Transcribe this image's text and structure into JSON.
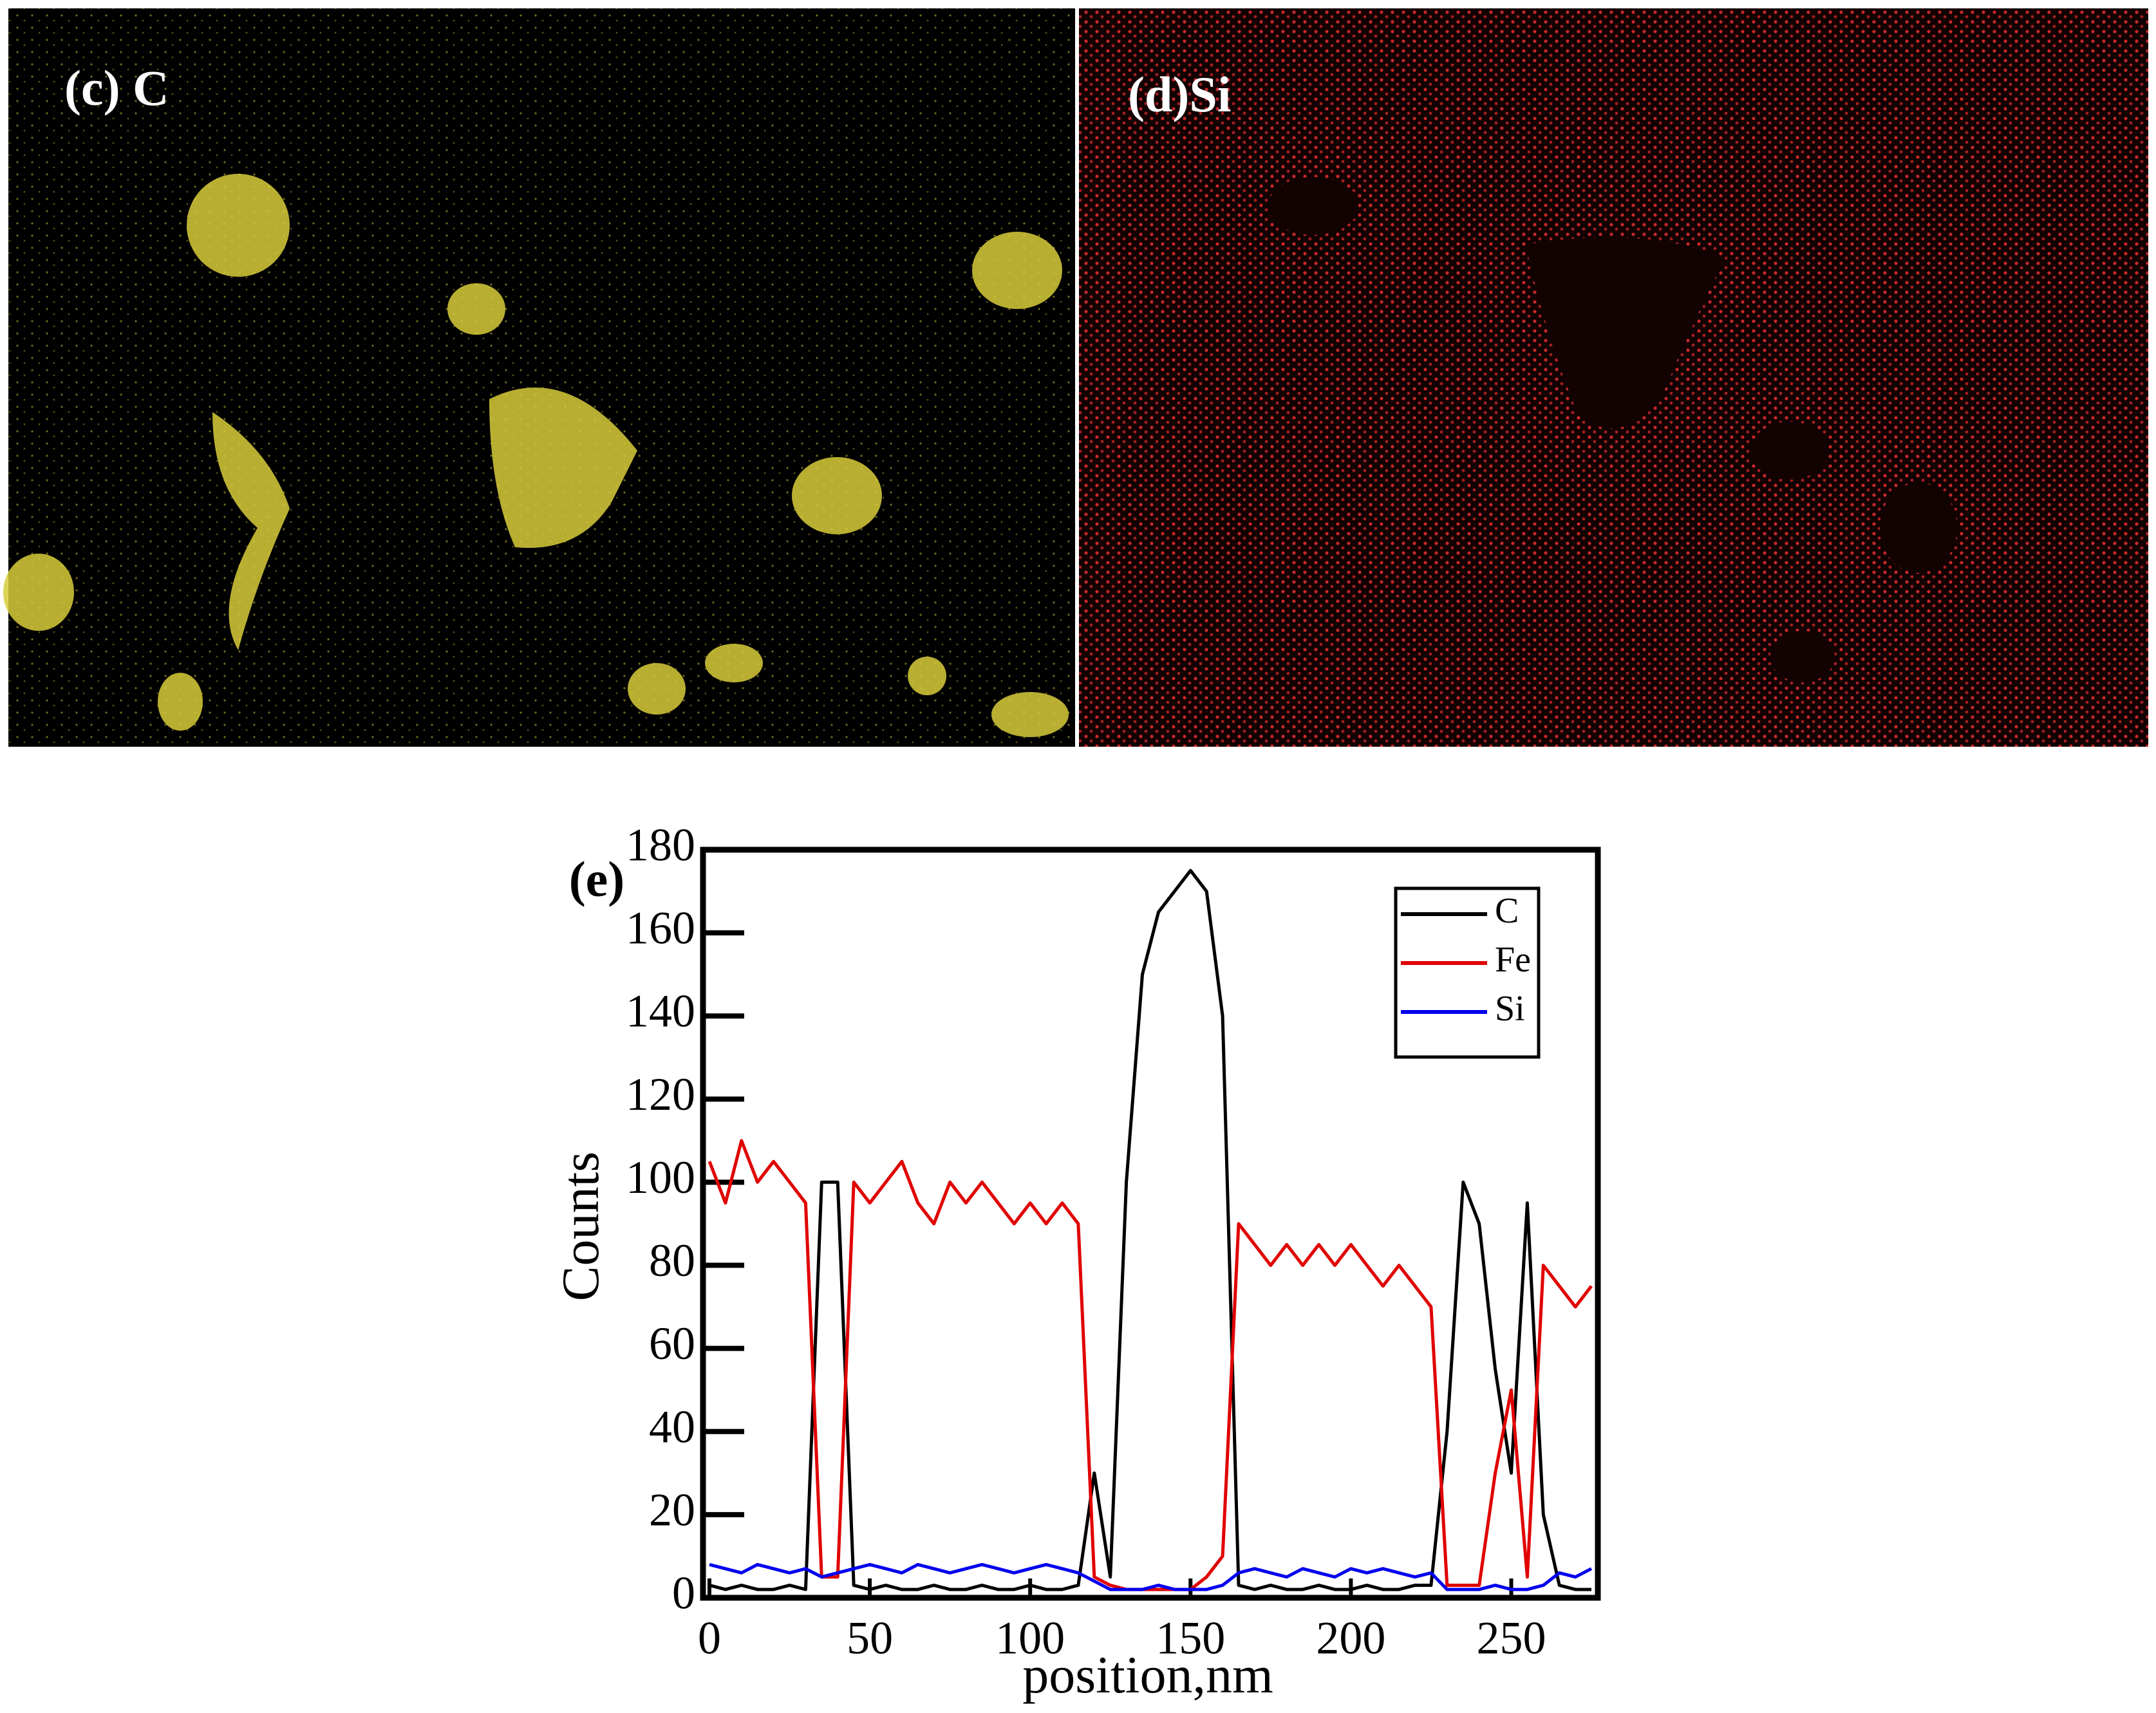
{
  "panels": [
    {
      "label": "(c) C"
    },
    {
      "label": "(d)Si"
    }
  ],
  "chart_data": {
    "type": "line",
    "annotation": "(e)",
    "xlabel": "position,nm",
    "ylabel": "Counts",
    "xlim": [
      -2,
      277
    ],
    "ylim": [
      0,
      180
    ],
    "xticks": [
      0,
      50,
      100,
      150,
      200,
      250
    ],
    "yticks": [
      0,
      20,
      40,
      60,
      80,
      100,
      120,
      140,
      160,
      180
    ],
    "legend": "upper right",
    "x": [
      0,
      5,
      10,
      15,
      20,
      25,
      30,
      35,
      40,
      45,
      50,
      55,
      60,
      65,
      70,
      75,
      80,
      85,
      90,
      95,
      100,
      105,
      110,
      115,
      120,
      125,
      130,
      135,
      140,
      145,
      150,
      155,
      160,
      165,
      170,
      175,
      180,
      185,
      190,
      195,
      200,
      205,
      210,
      215,
      220,
      225,
      230,
      235,
      240,
      245,
      250,
      255,
      260,
      265,
      270,
      275
    ],
    "series": [
      {
        "name": "C",
        "color": "#000000",
        "values": [
          3,
          2,
          3,
          2,
          2,
          3,
          2,
          100,
          100,
          3,
          2,
          3,
          2,
          2,
          3,
          2,
          2,
          3,
          2,
          2,
          3,
          2,
          2,
          3,
          30,
          5,
          100,
          150,
          165,
          170,
          175,
          170,
          140,
          3,
          2,
          3,
          2,
          2,
          3,
          2,
          2,
          3,
          2,
          2,
          3,
          3,
          40,
          100,
          90,
          55,
          30,
          95,
          20,
          3,
          2,
          2
        ]
      },
      {
        "name": "Fe",
        "color": "#e00000",
        "values": [
          105,
          95,
          110,
          100,
          105,
          100,
          95,
          5,
          5,
          100,
          95,
          100,
          105,
          95,
          90,
          100,
          95,
          100,
          95,
          90,
          95,
          90,
          95,
          90,
          5,
          3,
          2,
          2,
          2,
          2,
          2,
          5,
          10,
          90,
          85,
          80,
          85,
          80,
          85,
          80,
          85,
          80,
          75,
          80,
          75,
          70,
          3,
          3,
          3,
          30,
          50,
          5,
          80,
          75,
          70,
          75
        ]
      },
      {
        "name": "Si",
        "color": "#0000ee",
        "values": [
          8,
          7,
          6,
          8,
          7,
          6,
          7,
          5,
          6,
          7,
          8,
          7,
          6,
          8,
          7,
          6,
          7,
          8,
          7,
          6,
          7,
          8,
          7,
          6,
          4,
          2,
          2,
          2,
          3,
          2,
          2,
          2,
          3,
          6,
          7,
          6,
          5,
          7,
          6,
          5,
          7,
          6,
          7,
          6,
          5,
          6,
          2,
          2,
          2,
          3,
          2,
          2,
          3,
          6,
          5,
          7
        ]
      }
    ]
  }
}
